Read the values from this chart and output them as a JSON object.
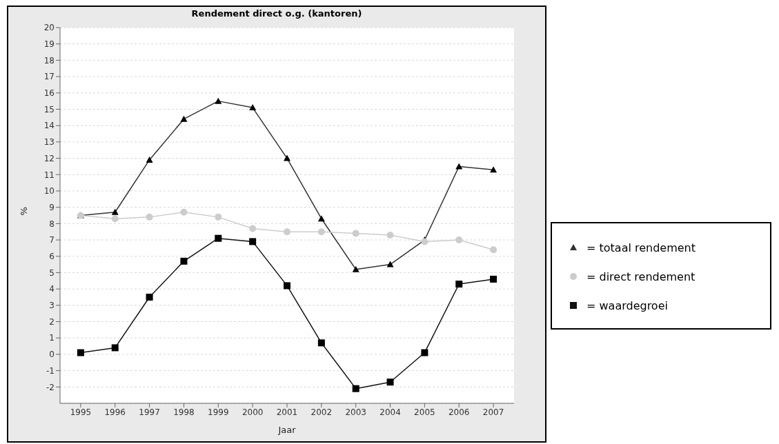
{
  "chart_data": {
    "type": "line",
    "title": "Rendement direct o.g. (kantoren)",
    "xlabel": "Jaar",
    "ylabel": "%",
    "categories": [
      "1995",
      "1996",
      "1997",
      "1998",
      "1999",
      "2000",
      "2001",
      "2002",
      "2003",
      "2004",
      "2005",
      "2006",
      "2007"
    ],
    "series": [
      {
        "name": "= totaal rendement",
        "color": "#333333",
        "marker": "triangle",
        "values": [
          8.5,
          8.7,
          11.9,
          14.4,
          15.5,
          15.1,
          12.0,
          8.3,
          5.2,
          5.5,
          7.0,
          11.5,
          11.3
        ]
      },
      {
        "name": "= direct rendement",
        "color": "#cccccc",
        "marker": "circle",
        "values": [
          8.5,
          8.3,
          8.4,
          8.7,
          8.4,
          7.7,
          7.5,
          7.5,
          7.4,
          7.3,
          6.9,
          7.0,
          6.4
        ]
      },
      {
        "name": "= waardegroei",
        "color": "#111111",
        "marker": "square",
        "values": [
          0.1,
          0.4,
          3.5,
          5.7,
          7.1,
          6.9,
          4.2,
          0.7,
          -2.1,
          -1.7,
          0.1,
          4.3,
          4.6
        ]
      }
    ],
    "ylim": [
      -3,
      20
    ],
    "yticks": [
      -2,
      -1,
      0,
      1,
      2,
      3,
      4,
      5,
      6,
      7,
      8,
      9,
      10,
      11,
      12,
      13,
      14,
      15,
      16,
      17,
      18,
      19,
      20
    ],
    "grid": "y",
    "legend": "right"
  }
}
